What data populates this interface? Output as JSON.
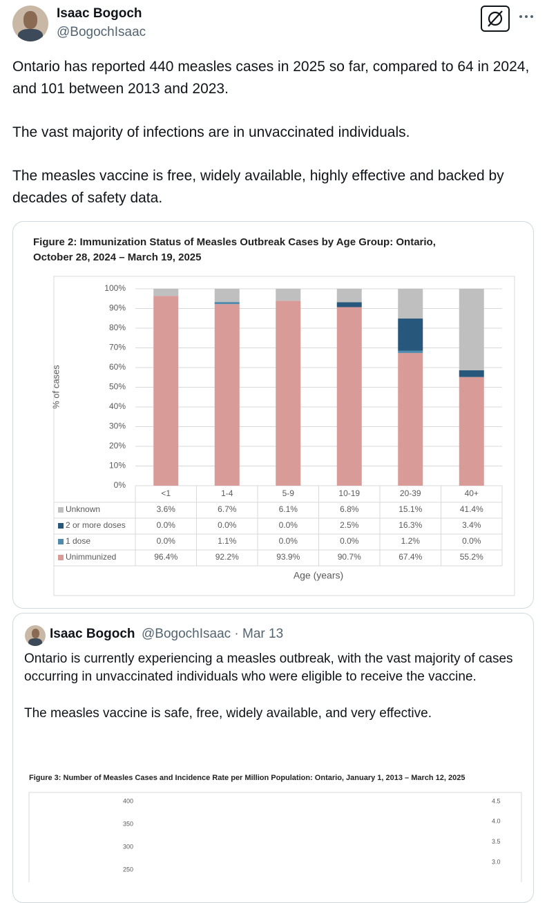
{
  "tweet": {
    "name": "Isaac Bogoch",
    "handle": "@BogochIsaac",
    "paragraphs": [
      "Ontario has reported 440 measles cases in 2025 so far, compared to 64 in 2024, and 101 between 2013 and 2023.",
      "The vast majority of infections are in unvaccinated individuals.",
      "The measles vaccine is free, widely available, highly effective and backed by decades of safety data."
    ]
  },
  "chart_data": [
    {
      "type": "bar",
      "stacked": true,
      "title": "Figure 2: Immunization Status of Measles Outbreak Cases by Age Group: Ontario, October 28, 2024 – March 19, 2025",
      "y_label": "% of cases",
      "x_label": "Age (years)",
      "categories": [
        "<1",
        "1-4",
        "5-9",
        "10-19",
        "20-39",
        "40+"
      ],
      "series": [
        {
          "name": "Unknown",
          "color": "#bfbfbf",
          "values": [
            3.6,
            6.7,
            6.1,
            6.8,
            15.1,
            41.4
          ],
          "value_labels": [
            "3.6%",
            "6.7%",
            "6.1%",
            "6.8%",
            "15.1%",
            "41.4%"
          ]
        },
        {
          "name": "2 or more doses",
          "color": "#27587c",
          "values": [
            0,
            0,
            0,
            2.5,
            16.3,
            3.4
          ],
          "value_labels": [
            "0.0%",
            "0.0%",
            "0.0%",
            "2.5%",
            "16.3%",
            "3.4%"
          ]
        },
        {
          "name": "1 dose",
          "color": "#4f8bad",
          "values": [
            0,
            1.1,
            0,
            0,
            1.2,
            0
          ],
          "value_labels": [
            "0.0%",
            "1.1%",
            "0.0%",
            "0.0%",
            "1.2%",
            "0.0%"
          ]
        },
        {
          "name": "Unimmunized",
          "color": "#d99b97",
          "values": [
            96.4,
            92.2,
            93.9,
            90.7,
            67.4,
            55.2
          ],
          "value_labels": [
            "96.4%",
            "92.2%",
            "93.9%",
            "90.7%",
            "67.4%",
            "55.2%"
          ]
        }
      ],
      "ylim": [
        0,
        100
      ],
      "yticks": [
        {
          "value": 0,
          "label": "0%"
        },
        {
          "value": 10,
          "label": "10%"
        },
        {
          "value": 20,
          "label": "20%"
        },
        {
          "value": 30,
          "label": "30%"
        },
        {
          "value": 40,
          "label": "40%"
        },
        {
          "value": 50,
          "label": "50%"
        },
        {
          "value": 60,
          "label": "60%"
        },
        {
          "value": 70,
          "label": "70%"
        },
        {
          "value": 80,
          "label": "80%"
        },
        {
          "value": 90,
          "label": "90%"
        },
        {
          "value": 100,
          "label": "100%"
        }
      ],
      "grid": true
    },
    {
      "type": "bar",
      "title": "Figure 3: Number of Measles Cases and Incidence Rate per Million Population: Ontario, January 1, 2013 – March 12, 2025",
      "ylim": [
        0,
        400
      ],
      "yticks": [
        250,
        300,
        350,
        400
      ],
      "y2lim": [
        0,
        4.5
      ],
      "y2ticks": [
        {
          "value": 3,
          "label": "3.0"
        },
        3.5,
        {
          "value": 4,
          "label": "4.0"
        },
        4.5
      ]
    }
  ],
  "quote": {
    "name": "Isaac Bogoch",
    "meta": "@BogochIsaac · Mar 13",
    "paragraphs": [
      "Ontario is currently experiencing a measles outbreak, with the vast majority of cases occurring in unvaccinated individuals who were eligible to receive the vaccine.",
      "The measles vaccine is safe, free, widely available, and very effective."
    ]
  }
}
